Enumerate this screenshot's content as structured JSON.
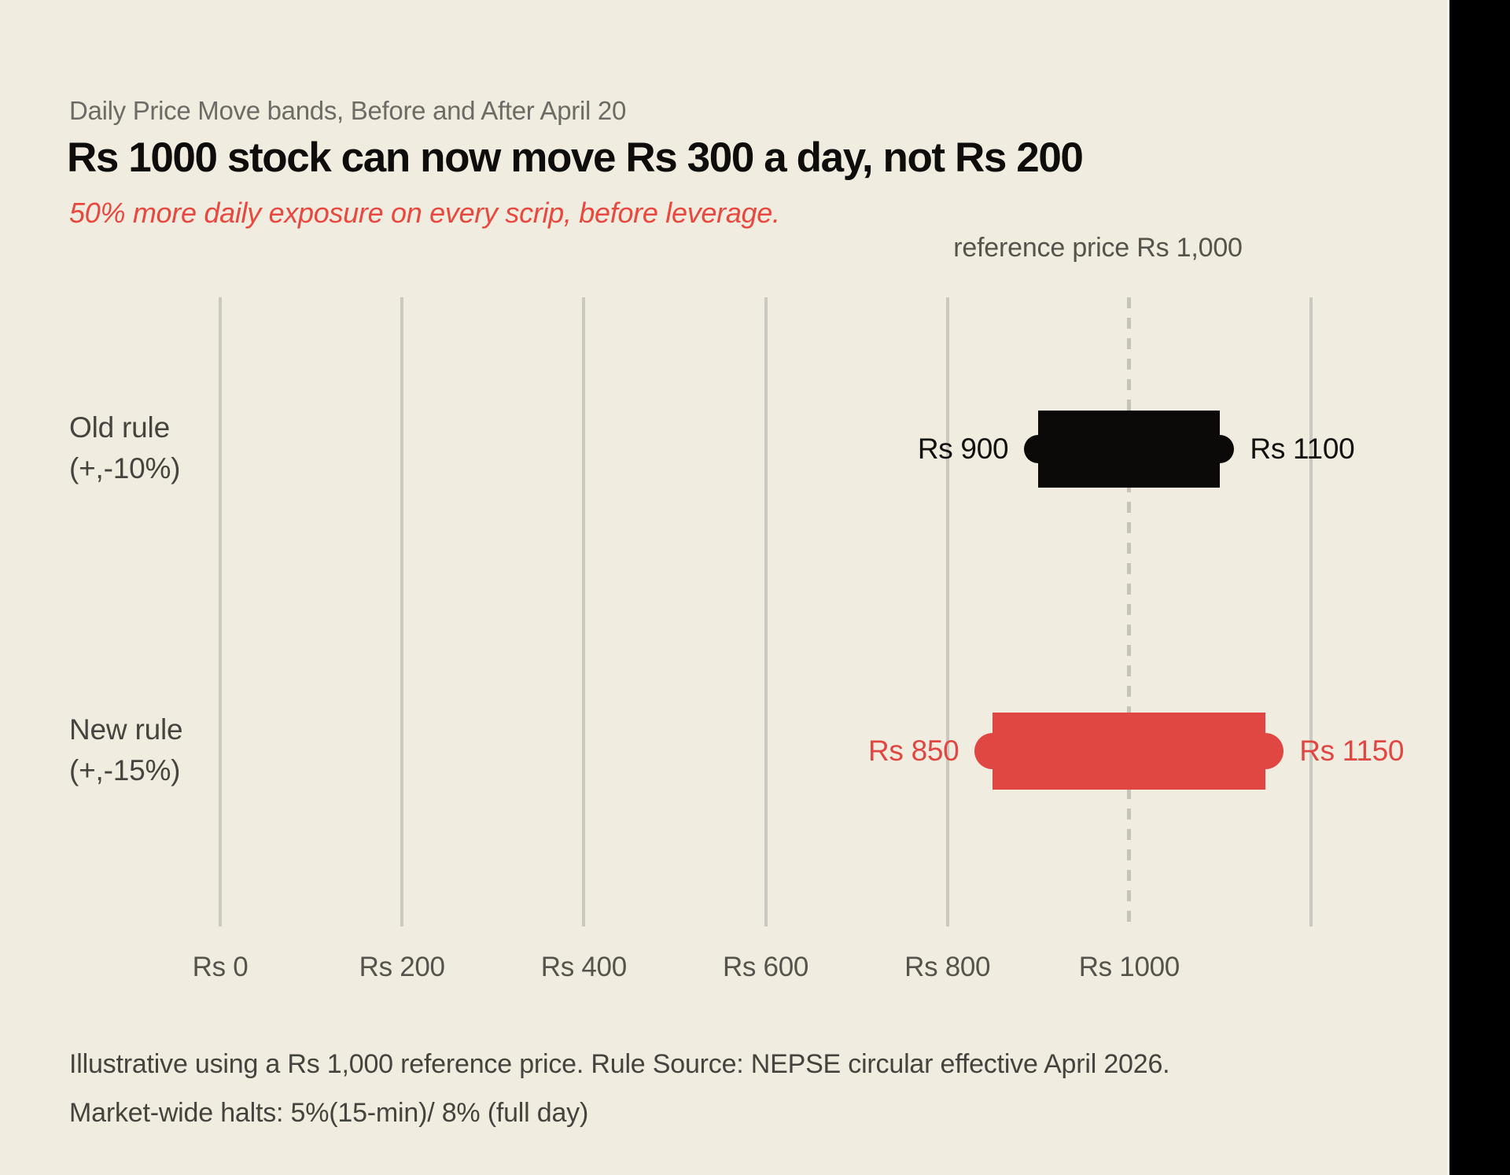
{
  "page": {
    "background_color": "#f0ecdf",
    "right_strip_color": "#000000"
  },
  "header": {
    "eyebrow": "Daily Price Move bands, Before and After April 20",
    "title": "Rs 1000 stock can now move Rs 300 a day, not Rs 200",
    "subtitle": "50% more daily exposure on every scrip, before leverage."
  },
  "chart_data": {
    "type": "bar",
    "subtype": "horizontal_range_bands",
    "x_axis": {
      "unit": "Rs",
      "min": 0,
      "max": 1200,
      "gridline_values": [
        0,
        200,
        400,
        600,
        800,
        1200
      ],
      "tick_labels": [
        {
          "value": 0,
          "label": "Rs 0"
        },
        {
          "value": 200,
          "label": "Rs 200"
        },
        {
          "value": 400,
          "label": "Rs 400"
        },
        {
          "value": 600,
          "label": "Rs 600"
        },
        {
          "value": 800,
          "label": "Rs 800"
        },
        {
          "value": 1000,
          "label": "Rs 1000"
        }
      ]
    },
    "reference_line": {
      "value": 1000,
      "style": "dashed",
      "label": "reference price Rs 1,000"
    },
    "rows": [
      {
        "name": "Old rule",
        "sub": "(+,-10%)",
        "low": 900,
        "high": 1100,
        "low_label": "Rs 900",
        "high_label": "Rs 1100",
        "color": "#0b0a08",
        "label_color": "#12110f"
      },
      {
        "name": "New rule",
        "sub": "(+,-15%)",
        "low": 850,
        "high": 1150,
        "low_label": "Rs 850",
        "high_label": "Rs 1150",
        "color": "#e04743",
        "label_color": "#e04743"
      }
    ]
  },
  "footer": {
    "line1": "Illustrative using a Rs 1,000 reference price. Rule Source: NEPSE circular effective April 2026.",
    "line2": "Market-wide halts: 5%(15-min)/ 8% (full day)"
  },
  "colors": {
    "gridline": "#cbc8c0",
    "dashed_reference": "#c6c3bb",
    "accent_red": "#e04743",
    "band_black": "#0b0a08"
  }
}
